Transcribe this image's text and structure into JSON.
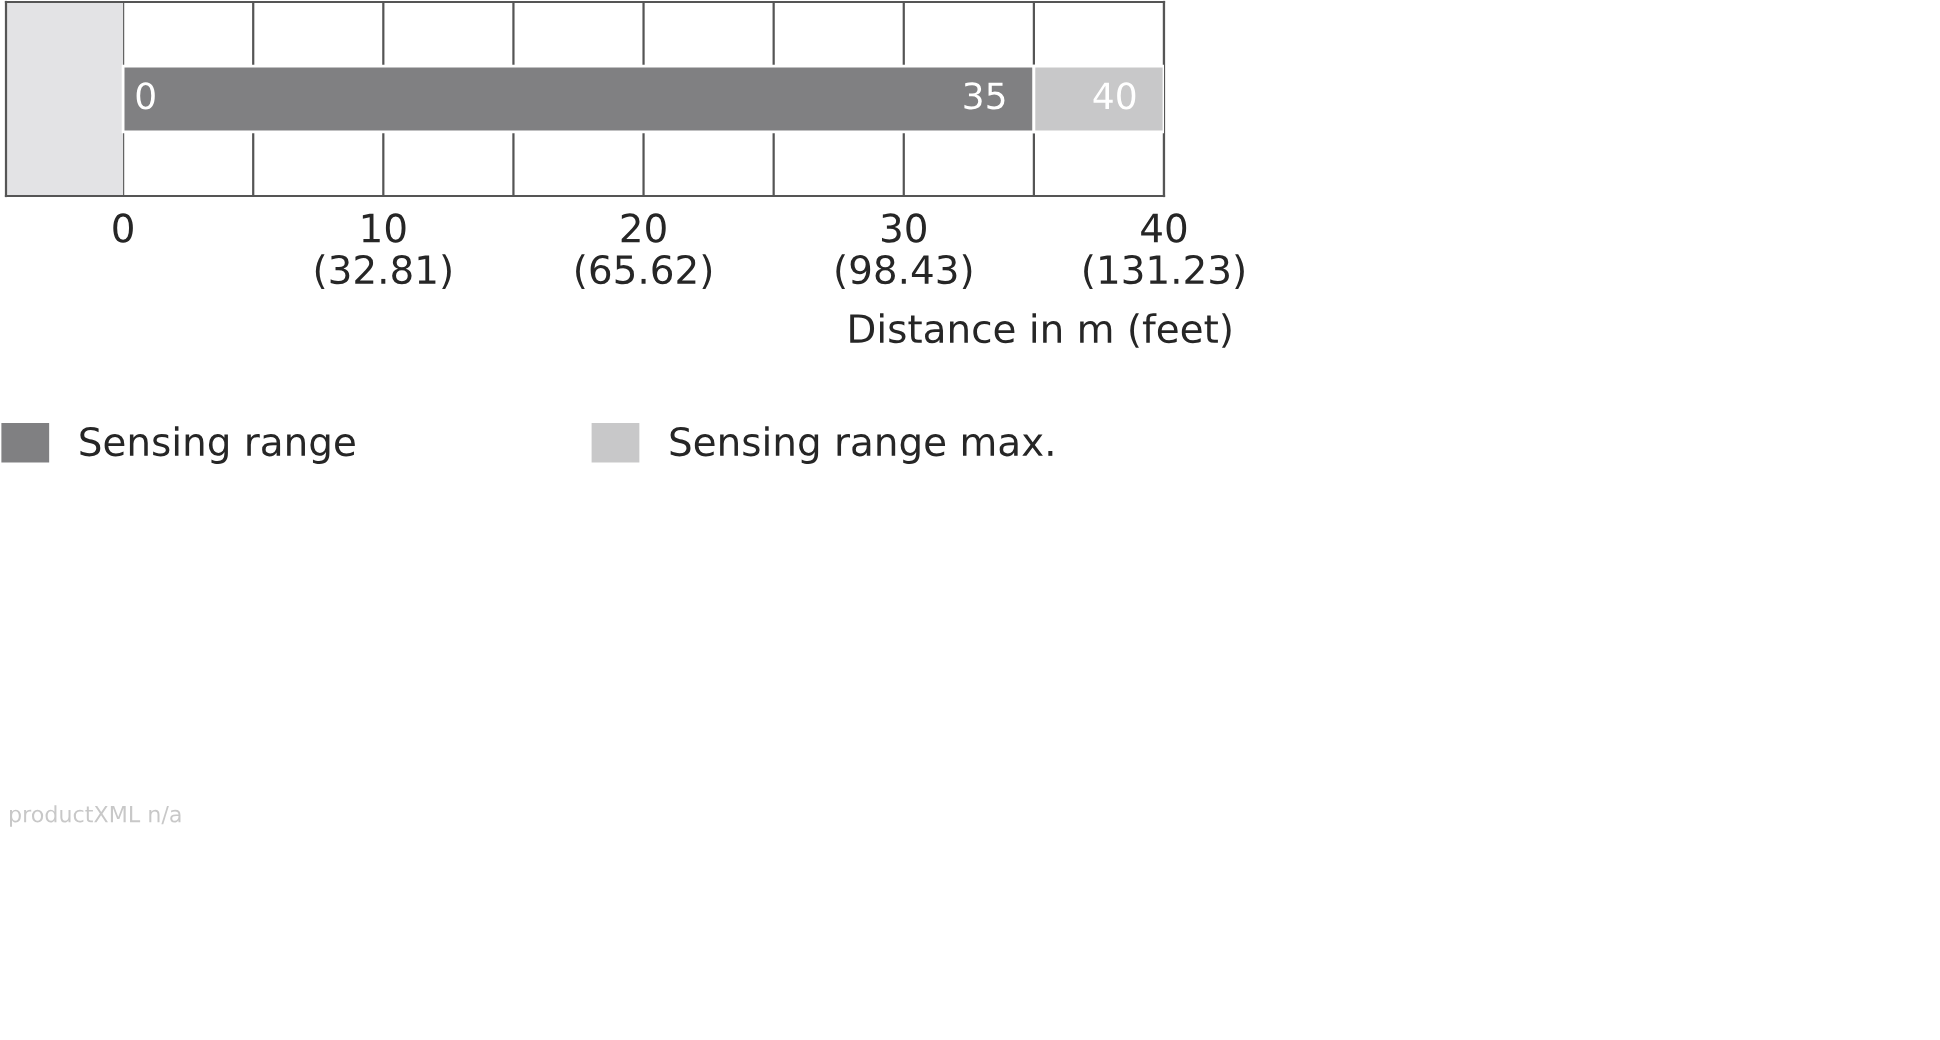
{
  "chart_data": {
    "type": "bar",
    "orientation": "horizontal",
    "stacked": true,
    "categories": [
      null
    ],
    "series": [
      {
        "name": "Sensing range",
        "color": "#808082",
        "values": [
          35
        ],
        "value_labels": [
          "35"
        ]
      },
      {
        "name": "Sensing range max.",
        "color": "#c8c8c9",
        "values": [
          5
        ]
      }
    ],
    "totals": [
      "40"
    ],
    "xlim": [
      -4.5,
      40
    ],
    "xticks": [
      0,
      {
        "value": 5,
        "label": null
      },
      10,
      {
        "value": 15,
        "label": null
      },
      20,
      {
        "value": 25,
        "label": null
      },
      30,
      {
        "value": 35,
        "label": null
      },
      40
    ],
    "x2lim": [
      -14.76,
      131.23
    ],
    "x2ticks": [
      {
        "value": 32.81,
        "label": "(32.81)"
      },
      {
        "value": 65.62,
        "label": "(65.62)"
      },
      {
        "value": 98.43,
        "label": "(98.43)"
      },
      {
        "value": 131.23,
        "label": "(131.23)"
      }
    ],
    "xlabel": "Distance in m (feet)",
    "bands": [
      {
        "axis": "x",
        "from": -4.5,
        "to": 0,
        "color": "#e3e3e5"
      }
    ],
    "annotations": [
      {
        "text": "0",
        "x": 0
      },
      "productXML n/a"
    ],
    "grid": "x",
    "legend": "bottom"
  }
}
